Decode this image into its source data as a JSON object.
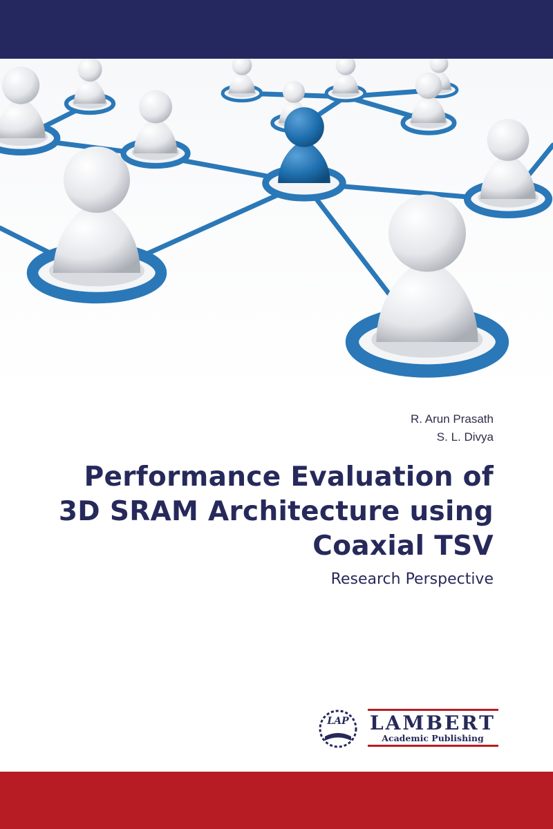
{
  "authors": [
    "R. Arun Prasath",
    "S. L. Divya"
  ],
  "title": {
    "lines": [
      "Performance Evaluation of",
      "3D SRAM Architecture using",
      "Coaxial TSV"
    ]
  },
  "subtitle": "Research Perspective",
  "publisher": {
    "badge": "LAP",
    "name": "LAMBERT",
    "imprint": "Academic Publishing"
  }
}
